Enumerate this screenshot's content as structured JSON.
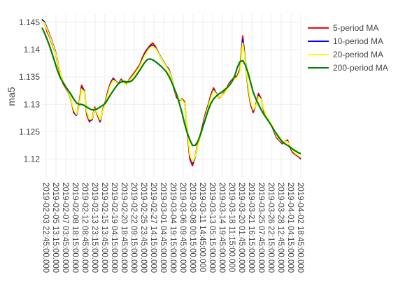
{
  "chart_data": {
    "type": "line",
    "xlabel": "",
    "ylabel": "ma5",
    "ylim": [
      1.1165,
      1.1465
    ],
    "yticks": [
      1.12,
      1.125,
      1.13,
      1.135,
      1.14,
      1.145
    ],
    "ytick_labels": [
      "1.12",
      "1.125",
      "1.13",
      "1.135",
      "1.14",
      "1.145"
    ],
    "x_tick_labels": [
      "2019-02-03 22:45:00.000",
      "2019-02-05 13:15:00.000",
      "2019-02-07 03:45:00.000",
      "2019-02-08 18:15:00.000",
      "2019-02-12 08:45:00.000",
      "2019-02-13 23:15:00.000",
      "2019-02-15 13:45:00.000",
      "2019-02-19 04:15:00.000",
      "2019-02-20 18:45:00.000",
      "2019-02-22 09:15:00.000",
      "2019-02-25 23:45:00.000",
      "2019-02-27 14:15:00.000",
      "2019-03-01 04:45:00.000",
      "2019-03-04 19:15:00.000",
      "2019-03-06 09:45:00.000",
      "2019-03-08 00:15:00.000",
      "2019-03-11 14:45:00.000",
      "2019-03-13 05:15:00.000",
      "2019-03-14 19:45:00.000",
      "2019-03-18 11:15:00.000",
      "2019-03-20 01:45:00.000",
      "2019-03-21 16:15:00.000",
      "2019-03-25 07:45:00.000",
      "2019-03-26 22:15:00.000",
      "2019-03-28 12:45:00.000",
      "2019-04-01 04:15:00.000",
      "2019-04-02 18:45:00.000"
    ],
    "legend_position": "top-right",
    "grid": true,
    "series": [
      {
        "name": "5-period MA",
        "color": "#ff0000",
        "values": [
          1.1455,
          1.1448,
          1.1432,
          1.1422,
          1.1408,
          1.1395,
          1.1375,
          1.1352,
          1.1338,
          1.133,
          1.1322,
          1.131,
          1.1285,
          1.128,
          1.13,
          1.1335,
          1.1325,
          1.128,
          1.1268,
          1.1275,
          1.1295,
          1.128,
          1.1268,
          1.129,
          1.1305,
          1.1325,
          1.134,
          1.1348,
          1.1342,
          1.1338,
          1.1346,
          1.134,
          1.1336,
          1.1345,
          1.1352,
          1.1358,
          1.1365,
          1.1372,
          1.1385,
          1.1395,
          1.1402,
          1.1408,
          1.1412,
          1.1405,
          1.1395,
          1.1385,
          1.1378,
          1.137,
          1.1365,
          1.135,
          1.1328,
          1.1312,
          1.1308,
          1.131,
          1.1305,
          1.125,
          1.12,
          1.1188,
          1.1205,
          1.1228,
          1.1245,
          1.1265,
          1.1285,
          1.13,
          1.1318,
          1.133,
          1.132,
          1.1312,
          1.1315,
          1.1322,
          1.133,
          1.134,
          1.1345,
          1.135,
          1.1352,
          1.1365,
          1.1425,
          1.138,
          1.133,
          1.13,
          1.1285,
          1.13,
          1.132,
          1.131,
          1.1288,
          1.1275,
          1.1268,
          1.1262,
          1.1248,
          1.1238,
          1.1233,
          1.1228,
          1.1232,
          1.1235,
          1.122,
          1.1212,
          1.1208,
          1.1205,
          1.12
        ]
      },
      {
        "name": "10-period MA",
        "color": "#0000ff",
        "values": [
          1.1455,
          1.145,
          1.1438,
          1.1426,
          1.1412,
          1.1398,
          1.1378,
          1.1356,
          1.134,
          1.1332,
          1.1322,
          1.1308,
          1.1288,
          1.128,
          1.1296,
          1.133,
          1.1325,
          1.1285,
          1.127,
          1.1272,
          1.1292,
          1.1282,
          1.127,
          1.1288,
          1.1303,
          1.1322,
          1.1338,
          1.1346,
          1.1342,
          1.1338,
          1.1344,
          1.134,
          1.1337,
          1.1344,
          1.135,
          1.1356,
          1.1363,
          1.137,
          1.1382,
          1.1392,
          1.14,
          1.1406,
          1.1408,
          1.1403,
          1.1395,
          1.1386,
          1.1378,
          1.137,
          1.1363,
          1.135,
          1.133,
          1.1315,
          1.1308,
          1.1308,
          1.1303,
          1.1255,
          1.1205,
          1.1192,
          1.1203,
          1.1225,
          1.1243,
          1.1262,
          1.1282,
          1.1298,
          1.1315,
          1.1327,
          1.132,
          1.1313,
          1.1315,
          1.132,
          1.1328,
          1.1338,
          1.1344,
          1.1348,
          1.1351,
          1.1362,
          1.1418,
          1.1382,
          1.1334,
          1.1303,
          1.1288,
          1.1298,
          1.1316,
          1.131,
          1.129,
          1.1277,
          1.1268,
          1.1262,
          1.125,
          1.124,
          1.1234,
          1.123,
          1.1232,
          1.1233,
          1.1222,
          1.1214,
          1.1209,
          1.1206,
          1.1202
        ]
      },
      {
        "name": "20-period MA",
        "color": "#ffff00",
        "values": [
          1.1452,
          1.1448,
          1.1436,
          1.1424,
          1.141,
          1.1396,
          1.1377,
          1.1356,
          1.1341,
          1.1332,
          1.1323,
          1.1309,
          1.129,
          1.1282,
          1.1296,
          1.1328,
          1.1323,
          1.1286,
          1.1272,
          1.1274,
          1.1292,
          1.1283,
          1.1272,
          1.1288,
          1.1302,
          1.132,
          1.1336,
          1.1344,
          1.1341,
          1.1337,
          1.1343,
          1.1339,
          1.1336,
          1.1343,
          1.1349,
          1.1355,
          1.1362,
          1.1369,
          1.138,
          1.139,
          1.1398,
          1.1404,
          1.1406,
          1.1402,
          1.1394,
          1.1385,
          1.1377,
          1.1369,
          1.1362,
          1.1349,
          1.133,
          1.1316,
          1.1309,
          1.1308,
          1.1302,
          1.1256,
          1.1208,
          1.1195,
          1.1204,
          1.1224,
          1.1242,
          1.126,
          1.128,
          1.1296,
          1.1313,
          1.1325,
          1.1319,
          1.1313,
          1.1315,
          1.132,
          1.1327,
          1.1337,
          1.1343,
          1.1347,
          1.135,
          1.136,
          1.1412,
          1.138,
          1.1336,
          1.1305,
          1.129,
          1.1298,
          1.1314,
          1.1309,
          1.1291,
          1.1278,
          1.1269,
          1.1263,
          1.1251,
          1.1241,
          1.1235,
          1.1231,
          1.1232,
          1.1232,
          1.1223,
          1.1215,
          1.121,
          1.1207,
          1.1203
        ]
      },
      {
        "name": "200-period MA",
        "color": "#008000",
        "values": [
          1.144,
          1.143,
          1.1418,
          1.1405,
          1.139,
          1.1375,
          1.136,
          1.1348,
          1.134,
          1.1332,
          1.1325,
          1.1318,
          1.131,
          1.1303,
          1.13,
          1.13,
          1.1298,
          1.1295,
          1.1292,
          1.129,
          1.129,
          1.1292,
          1.1295,
          1.1298,
          1.1302,
          1.131,
          1.1318,
          1.1325,
          1.1332,
          1.1338,
          1.1341,
          1.1342,
          1.1341,
          1.1341,
          1.1343,
          1.1348,
          1.1355,
          1.1362,
          1.137,
          1.1377,
          1.1382,
          1.1383,
          1.1381,
          1.1378,
          1.1374,
          1.137,
          1.1365,
          1.136,
          1.1352,
          1.1342,
          1.133,
          1.1318,
          1.1302,
          1.1285,
          1.1265,
          1.1248,
          1.1235,
          1.1225,
          1.1225,
          1.1232,
          1.1245,
          1.126,
          1.1275,
          1.129,
          1.1302,
          1.131,
          1.1315,
          1.1319,
          1.1322,
          1.1326,
          1.133,
          1.1335,
          1.1342,
          1.1352,
          1.1368,
          1.1378,
          1.138,
          1.1372,
          1.1358,
          1.134,
          1.1322,
          1.131,
          1.13,
          1.129,
          1.1282,
          1.1275,
          1.1268,
          1.126,
          1.1252,
          1.1245,
          1.1238,
          1.1232,
          1.1228,
          1.1225,
          1.1222,
          1.1218,
          1.1215,
          1.1212,
          1.121
        ]
      }
    ]
  }
}
